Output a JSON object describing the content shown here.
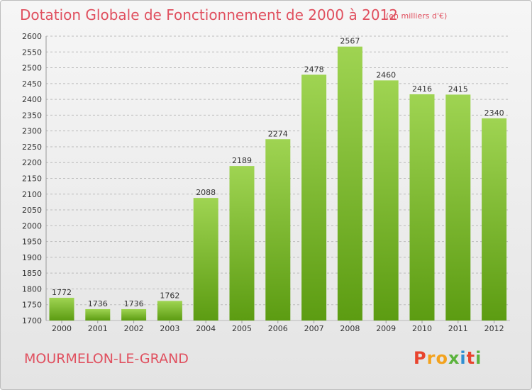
{
  "header": {
    "title": "Dotation Globale de Fonctionnement de 2000 à 2012",
    "unit_note": "(en milliers d'€)"
  },
  "footer": {
    "city": "MOURMELON-LE-GRAND",
    "brand": "Proxiti"
  },
  "colors": {
    "title": "#e0505f",
    "bar_top": "#9fd452",
    "bar_bottom": "#5c9c12",
    "grid": "#bbbbbb",
    "brand_letters": [
      "#e8442e",
      "#f3a21d",
      "#f3a21d",
      "#5bb33c",
      "#2f8fd2",
      "#e8442e",
      "#5bb33c"
    ]
  },
  "chart_data": {
    "type": "bar",
    "categories": [
      "2000",
      "2001",
      "2002",
      "2003",
      "2004",
      "2005",
      "2006",
      "2007",
      "2008",
      "2009",
      "2010",
      "2011",
      "2012"
    ],
    "values": [
      1772,
      1736,
      1736,
      1762,
      2088,
      2189,
      2274,
      2478,
      2567,
      2460,
      2416,
      2415,
      2340
    ],
    "value_labels": [
      "1772",
      "1736",
      "1736",
      "1762",
      "2088",
      "2189",
      "2274",
      "2478",
      "2567",
      "2460",
      "2416",
      "2415",
      "2340"
    ],
    "ylim": [
      1700,
      2600
    ],
    "yticks": [
      "1700",
      "1750",
      "1800",
      "1850",
      "1900",
      "1950",
      "2000",
      "2050",
      "2100",
      "2150",
      "2200",
      "2250",
      "2300",
      "2350",
      "2400",
      "2450",
      "2500",
      "2550",
      "2600"
    ],
    "grid": true,
    "legend": "none"
  }
}
